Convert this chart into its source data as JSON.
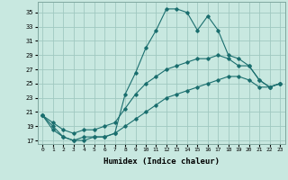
{
  "xlabel": "Humidex (Indice chaleur)",
  "background_color": "#c8e8e0",
  "grid_color": "#a0c8c0",
  "line_color": "#1a6e6e",
  "xlim": [
    -0.5,
    23.5
  ],
  "ylim": [
    16.5,
    36.5
  ],
  "yticks": [
    17,
    19,
    21,
    23,
    25,
    27,
    29,
    31,
    33,
    35
  ],
  "xticks": [
    0,
    1,
    2,
    3,
    4,
    5,
    6,
    7,
    8,
    9,
    10,
    11,
    12,
    13,
    14,
    15,
    16,
    17,
    18,
    19,
    20,
    21,
    22,
    23
  ],
  "series": [
    [
      20.5,
      19.0,
      17.5,
      17.0,
      17.5,
      17.5,
      17.5,
      18.0,
      23.5,
      26.5,
      30.0,
      32.5,
      35.5,
      35.5,
      35.0,
      32.5,
      34.5,
      32.5,
      29.0,
      28.5,
      27.5,
      25.5,
      24.5,
      25.0
    ],
    [
      20.5,
      19.5,
      18.5,
      18.0,
      18.5,
      18.5,
      19.0,
      19.5,
      21.5,
      23.5,
      25.0,
      26.0,
      27.0,
      27.5,
      28.0,
      28.5,
      28.5,
      29.0,
      28.5,
      27.5,
      27.5,
      25.5,
      24.5,
      25.0
    ],
    [
      20.5,
      18.5,
      17.5,
      17.0,
      17.0,
      17.5,
      17.5,
      18.0,
      19.0,
      20.0,
      21.0,
      22.0,
      23.0,
      23.5,
      24.0,
      24.5,
      25.0,
      25.5,
      26.0,
      26.0,
      25.5,
      24.5,
      24.5,
      25.0
    ]
  ]
}
